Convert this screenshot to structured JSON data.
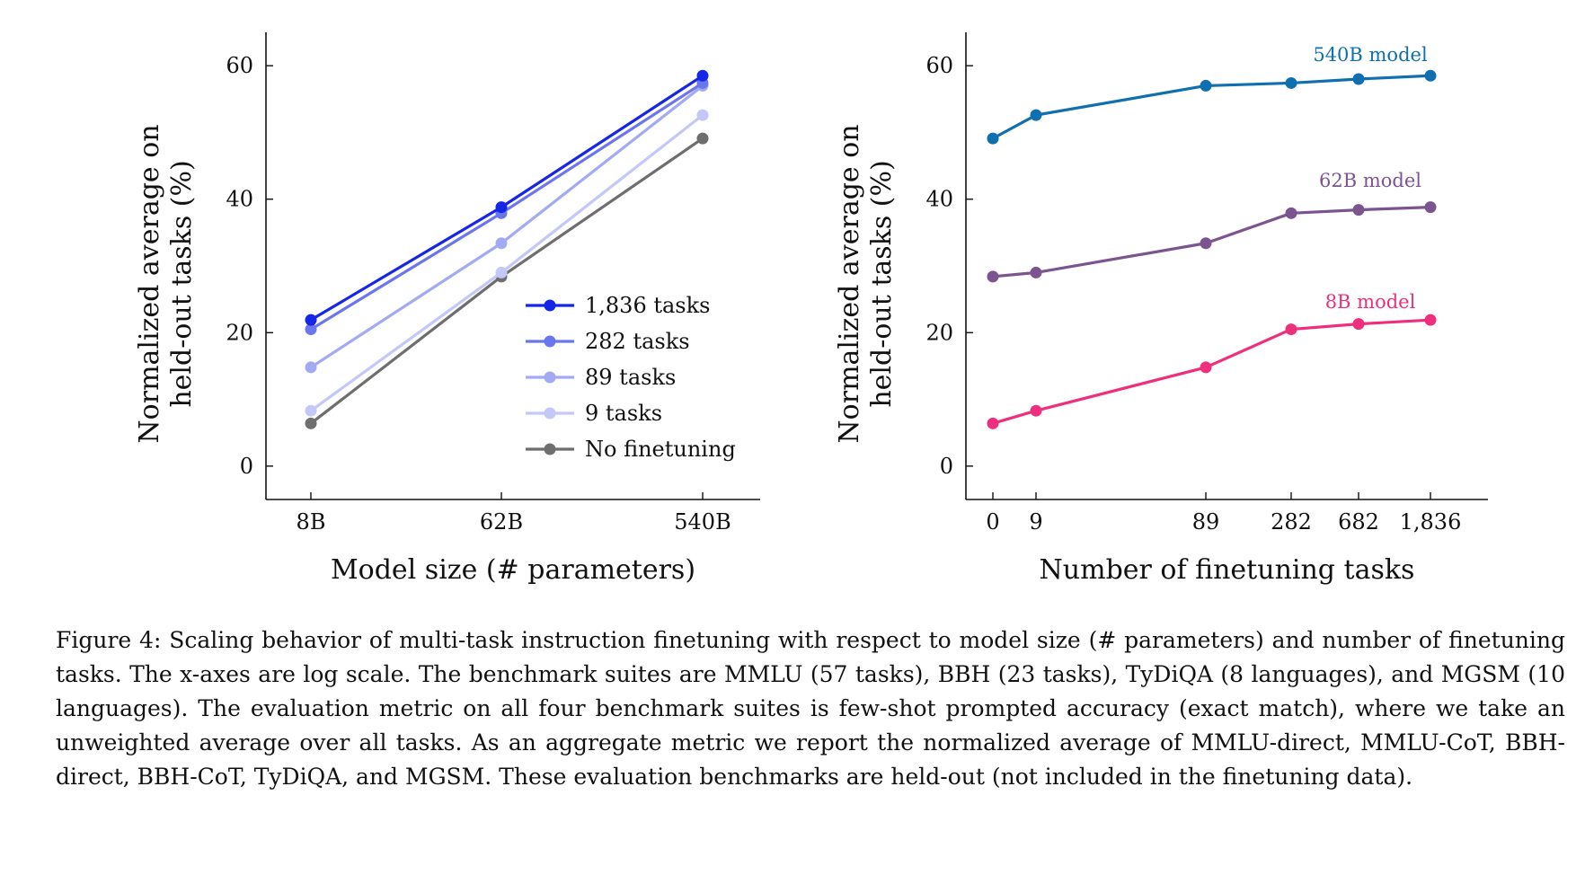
{
  "chart_data": [
    {
      "type": "line",
      "xlabel": "Model size (# parameters)",
      "ylabel": "Normalized average on held-out tasks (%)",
      "ylabel_lines": [
        "Normalized average on",
        "held-out tasks (%)"
      ],
      "x_scale": "log",
      "categories": [
        "8B",
        "62B",
        "540B"
      ],
      "ylim": [
        -5,
        65
      ],
      "yticks": [
        0,
        20,
        40,
        60
      ],
      "grid": false,
      "legend_position": "bottom-right",
      "series": [
        {
          "name": "No finetuning",
          "color": "#6e6e6e",
          "values": [
            6.4,
            28.4,
            49.1
          ]
        },
        {
          "name": "9 tasks",
          "color": "#c4c8f8",
          "values": [
            8.3,
            29.0,
            52.6
          ]
        },
        {
          "name": "89 tasks",
          "color": "#a3aaf4",
          "values": [
            14.8,
            33.4,
            57.0
          ]
        },
        {
          "name": "282 tasks",
          "color": "#6b75ee",
          "values": [
            20.5,
            37.9,
            57.4
          ]
        },
        {
          "name": "1,836 tasks",
          "color": "#1526e6",
          "values": [
            21.9,
            38.8,
            58.5
          ]
        }
      ],
      "legend_order": [
        "1,836 tasks",
        "282 tasks",
        "89 tasks",
        "9 tasks",
        "No finetuning"
      ]
    },
    {
      "type": "line",
      "xlabel": "Number of finetuning tasks",
      "ylabel": "Normalized average on held-out tasks (%)",
      "ylabel_lines": [
        "Normalized average on",
        "held-out tasks (%)"
      ],
      "x_scale": "log",
      "categories": [
        "0",
        "9",
        "89",
        "282",
        "682",
        "1,836"
      ],
      "ylim": [
        -5,
        65
      ],
      "yticks": [
        0,
        20,
        40,
        60
      ],
      "grid": false,
      "series": [
        {
          "name": "540B model",
          "color": "#0f6faf",
          "values": [
            49.1,
            52.6,
            57.0,
            57.4,
            58.0,
            58.5
          ]
        },
        {
          "name": "62B model",
          "color": "#7c5490",
          "values": [
            28.4,
            29.0,
            33.4,
            37.9,
            38.4,
            38.8
          ]
        },
        {
          "name": "8B model",
          "color": "#ee2f7d",
          "values": [
            6.4,
            8.3,
            14.8,
            20.5,
            21.3,
            21.9
          ]
        }
      ]
    }
  ],
  "caption": "Figure 4: Scaling behavior of multi-task instruction finetuning with respect to model size (# parameters) and number of finetuning tasks. The x-axes are log scale. The benchmark suites are MMLU (57 tasks), BBH (23 tasks), TyDiQA (8 languages), and MGSM (10 languages). The evaluation metric on all four benchmark suites is few-shot prompted accuracy (exact match), where we take an unweighted average over all tasks. As an aggregate metric we report the normalized average of MMLU-direct, MMLU-CoT, BBH-direct, BBH-CoT, TyDiQA, and MGSM. These evaluation benchmarks are held-out (not included in the finetuning data)."
}
